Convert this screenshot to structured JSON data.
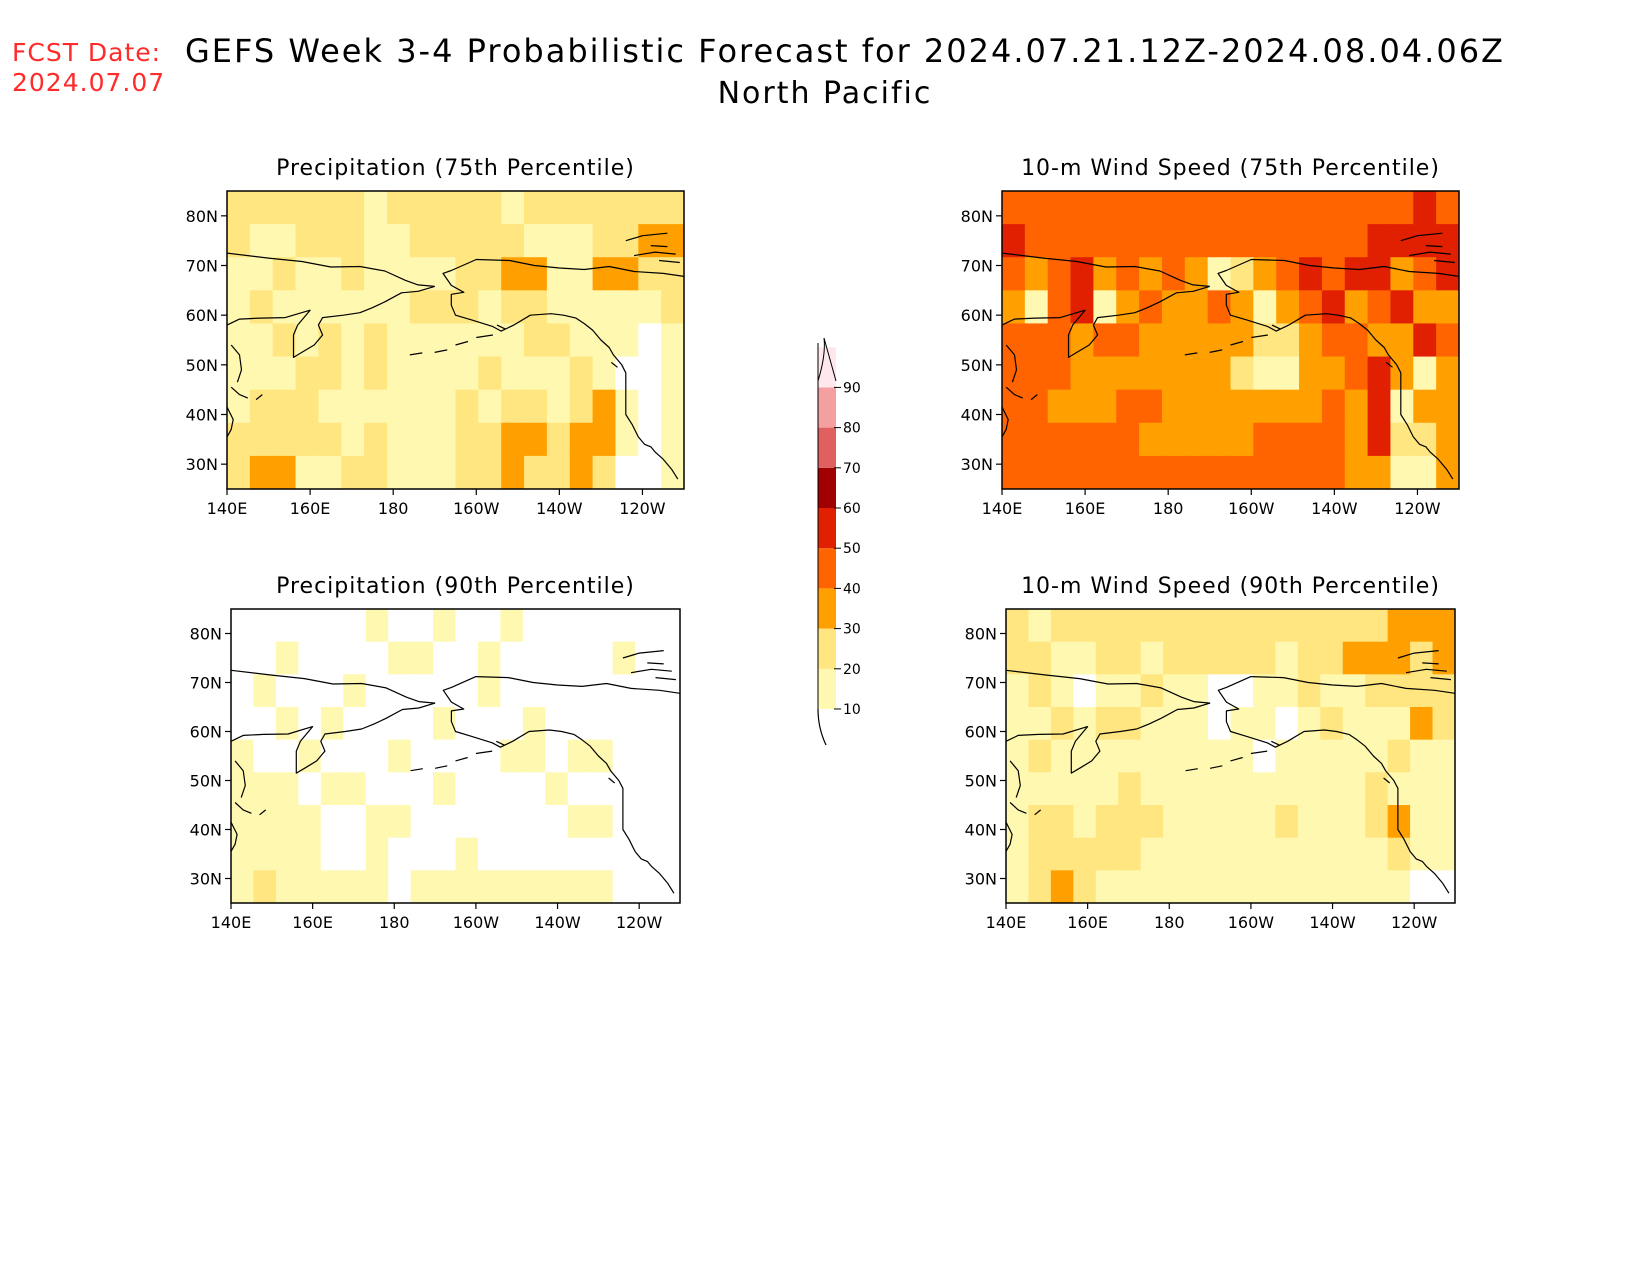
{
  "header": {
    "fcst_label": "FCST Date:",
    "fcst_date": "2024.07.07",
    "title": "GEFS Week 3-4 Probabilistic Forecast for 2024.07.21.12Z-2024.08.04.06Z",
    "region": "North Pacific"
  },
  "panels": [
    {
      "title": "Precipitation (75th Percentile)",
      "field": [
        "CCCCCCBCCCCCBCCCCCCC",
        "CBBCCCBBCCCCCBBBCCDD",
        "BBCBBCBBBBCCDDBBDDCC",
        "BCBBBBBBCCCBCCBBBBBC",
        "BBCBCBCBBBBBBCCBBBAB",
        "BBBCCBCBBBBCBBBCBAAB",
        "BCCCBBBBBBCBCCBCDBAB",
        "CCCCCBCBBBCCDDCDDBAB",
        "CDDBBCCBBBCCDCCDCAAB"
      ]
    },
    {
      "title": "10-m Wind Speed (75th Percentile)",
      "field": [
        "EEEEEEEEEEEEEEEEEEFE",
        "FEEEEEEEEEEEEEEEFFFF",
        "EDEFDEDEDBCDEFEFFDEF",
        "DBEFBDEDDEDBDEFDEFDD",
        "EEEDEEDDDDDCCDEEDDFE",
        "EEEDDDDDDDCBBDDEFDBD",
        "EEDDDEEDDDDDDDEDFBDD",
        "EEEEEEDDDDDEEEEDFCCD",
        "EEEEEEEEEEEEEEEDDBBD"
      ]
    },
    {
      "title": "Precipitation (90th Percentile)",
      "field": [
        "AAAAAABAABAABAAAAAAA",
        "AABAAAABBAABAAAAABAA",
        "ABAAABAAAAABAAAAAAAA",
        "AABABAAAABAAABAAAAAA",
        "BAABAAABAAAABBABBAAA",
        "BBBABBAAABAAAABAAAAA",
        "BBBBAABBAAAAAAABBAAA",
        "BBBBAABAAABAAAAAAAAA",
        "BCBBBBBABBBBBBBBBAAA"
      ]
    },
    {
      "title": "10-m Wind Speed (90th Percentile)",
      "field": [
        "CBCCCCCCCCCCCCCCCDDD",
        "CCBBCCBCCCCCBCCDDDCD",
        "BCBABBCBBAABBCBBCCCC",
        "BBCBCCBBBABBABCBBBDC",
        "BCBBBBBBBBBABBBBBCBB",
        "BBBBBCBBBBBBBBBBCBBB",
        "BCCBCCCBBBBBCBBBCDBB",
        "BCCCCCBBBBBBBBBBBCBB",
        "BCDCBBBBBBBBBBBBBBAA"
      ]
    }
  ],
  "axes": {
    "x_ticks": [
      "140E",
      "160E",
      "180",
      "160W",
      "140W",
      "120W"
    ],
    "y_ticks": [
      "80N",
      "70N",
      "60N",
      "50N",
      "40N",
      "30N"
    ]
  },
  "colorbar": {
    "levels": [
      "10",
      "20",
      "30",
      "40",
      "50",
      "60",
      "70",
      "80",
      "90"
    ],
    "colors": [
      "#fff8b0",
      "#ffe680",
      "#ffa000",
      "#ff6400",
      "#e02000",
      "#a00000",
      "#e06060",
      "#f5a0a0",
      "#ffe8ec"
    ]
  },
  "palette": {
    "A": "#ffffff",
    "B": "#fff8b0",
    "C": "#ffe680",
    "D": "#ffa000",
    "E": "#ff6400",
    "F": "#e02000"
  }
}
